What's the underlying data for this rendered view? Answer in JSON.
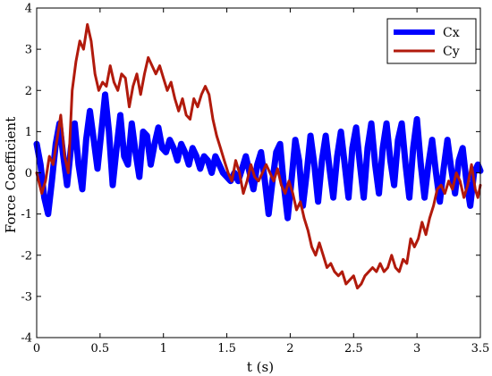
{
  "chart_data": {
    "type": "line",
    "xlabel": "t (s)",
    "ylabel": "Force Coefficient",
    "xlim": [
      0,
      3.5
    ],
    "ylim": [
      -4,
      4
    ],
    "x_ticks": [
      "0",
      "0.5",
      "1",
      "1.5",
      "2",
      "2.5",
      "3",
      "3.5"
    ],
    "y_ticks": [
      "-4",
      "-3",
      "-2",
      "-1",
      "0",
      "1",
      "2",
      "3",
      "4"
    ],
    "grid": false,
    "legend_position": "top-right",
    "series": [
      {
        "name": "Cx",
        "color": "#0000ff",
        "points": [
          [
            0.0,
            0.7
          ],
          [
            0.03,
            0.2
          ],
          [
            0.06,
            -0.6
          ],
          [
            0.09,
            -1.0
          ],
          [
            0.12,
            -0.2
          ],
          [
            0.15,
            0.7
          ],
          [
            0.18,
            1.2
          ],
          [
            0.21,
            0.4
          ],
          [
            0.24,
            -0.3
          ],
          [
            0.27,
            0.6
          ],
          [
            0.3,
            1.2
          ],
          [
            0.33,
            0.2
          ],
          [
            0.36,
            -0.4
          ],
          [
            0.39,
            0.8
          ],
          [
            0.42,
            1.5
          ],
          [
            0.45,
            0.8
          ],
          [
            0.48,
            0.1
          ],
          [
            0.51,
            1.0
          ],
          [
            0.54,
            1.9
          ],
          [
            0.57,
            1.0
          ],
          [
            0.6,
            -0.3
          ],
          [
            0.63,
            0.6
          ],
          [
            0.66,
            1.4
          ],
          [
            0.69,
            0.4
          ],
          [
            0.72,
            0.2
          ],
          [
            0.75,
            1.2
          ],
          [
            0.78,
            0.5
          ],
          [
            0.81,
            -0.1
          ],
          [
            0.84,
            1.0
          ],
          [
            0.87,
            0.9
          ],
          [
            0.9,
            0.2
          ],
          [
            0.93,
            0.7
          ],
          [
            0.96,
            1.1
          ],
          [
            0.99,
            0.6
          ],
          [
            1.02,
            0.5
          ],
          [
            1.05,
            0.8
          ],
          [
            1.08,
            0.6
          ],
          [
            1.11,
            0.3
          ],
          [
            1.14,
            0.7
          ],
          [
            1.17,
            0.5
          ],
          [
            1.2,
            0.2
          ],
          [
            1.23,
            0.6
          ],
          [
            1.26,
            0.4
          ],
          [
            1.29,
            0.1
          ],
          [
            1.32,
            0.4
          ],
          [
            1.35,
            0.3
          ],
          [
            1.38,
            0.0
          ],
          [
            1.41,
            0.4
          ],
          [
            1.44,
            0.2
          ],
          [
            1.47,
            0.0
          ],
          [
            1.5,
            -0.1
          ],
          [
            1.53,
            -0.2
          ],
          [
            1.56,
            0.0
          ],
          [
            1.59,
            -0.2
          ],
          [
            1.62,
            0.1
          ],
          [
            1.65,
            0.4
          ],
          [
            1.68,
            0.0
          ],
          [
            1.71,
            -0.4
          ],
          [
            1.74,
            0.2
          ],
          [
            1.77,
            0.5
          ],
          [
            1.8,
            -0.2
          ],
          [
            1.83,
            -1.0
          ],
          [
            1.86,
            -0.2
          ],
          [
            1.89,
            0.5
          ],
          [
            1.92,
            0.7
          ],
          [
            1.95,
            -0.3
          ],
          [
            1.98,
            -1.1
          ],
          [
            2.01,
            -0.2
          ],
          [
            2.04,
            0.8
          ],
          [
            2.07,
            0.3
          ],
          [
            2.1,
            -0.8
          ],
          [
            2.13,
            0.0
          ],
          [
            2.16,
            0.9
          ],
          [
            2.19,
            0.2
          ],
          [
            2.22,
            -0.7
          ],
          [
            2.25,
            0.3
          ],
          [
            2.28,
            0.9
          ],
          [
            2.31,
            0.1
          ],
          [
            2.34,
            -0.6
          ],
          [
            2.37,
            0.4
          ],
          [
            2.4,
            1.0
          ],
          [
            2.43,
            0.2
          ],
          [
            2.46,
            -0.6
          ],
          [
            2.49,
            0.6
          ],
          [
            2.52,
            1.1
          ],
          [
            2.55,
            0.2
          ],
          [
            2.58,
            -0.6
          ],
          [
            2.61,
            0.6
          ],
          [
            2.64,
            1.2
          ],
          [
            2.67,
            0.2
          ],
          [
            2.7,
            -0.5
          ],
          [
            2.73,
            0.6
          ],
          [
            2.76,
            1.2
          ],
          [
            2.79,
            0.3
          ],
          [
            2.82,
            -0.3
          ],
          [
            2.85,
            0.8
          ],
          [
            2.88,
            1.2
          ],
          [
            2.91,
            0.2
          ],
          [
            2.94,
            -0.6
          ],
          [
            2.97,
            0.6
          ],
          [
            3.0,
            1.3
          ],
          [
            3.03,
            0.2
          ],
          [
            3.06,
            -0.6
          ],
          [
            3.09,
            0.2
          ],
          [
            3.12,
            0.8
          ],
          [
            3.15,
            0.0
          ],
          [
            3.18,
            -0.7
          ],
          [
            3.21,
            0.1
          ],
          [
            3.24,
            0.8
          ],
          [
            3.27,
            0.1
          ],
          [
            3.3,
            -0.5
          ],
          [
            3.33,
            0.3
          ],
          [
            3.36,
            0.6
          ],
          [
            3.39,
            -0.2
          ],
          [
            3.42,
            -0.8
          ],
          [
            3.45,
            0.0
          ],
          [
            3.48,
            0.2
          ],
          [
            3.5,
            0.05
          ]
        ]
      },
      {
        "name": "Cy",
        "color": "#b11a0c",
        "points": [
          [
            0.0,
            0.0
          ],
          [
            0.04,
            -0.5
          ],
          [
            0.07,
            -0.2
          ],
          [
            0.1,
            0.4
          ],
          [
            0.13,
            0.2
          ],
          [
            0.16,
            0.8
          ],
          [
            0.19,
            1.4
          ],
          [
            0.22,
            0.4
          ],
          [
            0.25,
            0.0
          ],
          [
            0.28,
            2.0
          ],
          [
            0.31,
            2.7
          ],
          [
            0.34,
            3.2
          ],
          [
            0.37,
            3.0
          ],
          [
            0.4,
            3.6
          ],
          [
            0.43,
            3.2
          ],
          [
            0.46,
            2.4
          ],
          [
            0.49,
            2.0
          ],
          [
            0.52,
            2.2
          ],
          [
            0.55,
            2.1
          ],
          [
            0.58,
            2.6
          ],
          [
            0.61,
            2.2
          ],
          [
            0.64,
            2.0
          ],
          [
            0.67,
            2.4
          ],
          [
            0.7,
            2.3
          ],
          [
            0.73,
            1.6
          ],
          [
            0.76,
            2.1
          ],
          [
            0.79,
            2.4
          ],
          [
            0.82,
            1.9
          ],
          [
            0.85,
            2.4
          ],
          [
            0.88,
            2.8
          ],
          [
            0.91,
            2.6
          ],
          [
            0.94,
            2.4
          ],
          [
            0.97,
            2.6
          ],
          [
            1.0,
            2.3
          ],
          [
            1.03,
            2.0
          ],
          [
            1.06,
            2.2
          ],
          [
            1.09,
            1.8
          ],
          [
            1.12,
            1.5
          ],
          [
            1.15,
            1.8
          ],
          [
            1.18,
            1.4
          ],
          [
            1.21,
            1.3
          ],
          [
            1.24,
            1.8
          ],
          [
            1.27,
            1.6
          ],
          [
            1.3,
            1.9
          ],
          [
            1.33,
            2.1
          ],
          [
            1.36,
            1.9
          ],
          [
            1.39,
            1.3
          ],
          [
            1.42,
            0.9
          ],
          [
            1.45,
            0.6
          ],
          [
            1.48,
            0.3
          ],
          [
            1.51,
            0.0
          ],
          [
            1.54,
            -0.2
          ],
          [
            1.57,
            0.3
          ],
          [
            1.6,
            0.0
          ],
          [
            1.63,
            -0.5
          ],
          [
            1.66,
            -0.2
          ],
          [
            1.69,
            0.2
          ],
          [
            1.72,
            -0.1
          ],
          [
            1.75,
            -0.2
          ],
          [
            1.78,
            0.0
          ],
          [
            1.81,
            0.2
          ],
          [
            1.84,
            0.0
          ],
          [
            1.87,
            -0.2
          ],
          [
            1.9,
            0.1
          ],
          [
            1.93,
            -0.3
          ],
          [
            1.96,
            -0.5
          ],
          [
            1.99,
            -0.2
          ],
          [
            2.02,
            -0.5
          ],
          [
            2.05,
            -0.9
          ],
          [
            2.08,
            -0.7
          ],
          [
            2.11,
            -1.1
          ],
          [
            2.14,
            -1.4
          ],
          [
            2.17,
            -1.8
          ],
          [
            2.2,
            -2.0
          ],
          [
            2.23,
            -1.7
          ],
          [
            2.26,
            -2.0
          ],
          [
            2.29,
            -2.3
          ],
          [
            2.32,
            -2.2
          ],
          [
            2.35,
            -2.4
          ],
          [
            2.38,
            -2.5
          ],
          [
            2.41,
            -2.4
          ],
          [
            2.44,
            -2.7
          ],
          [
            2.47,
            -2.6
          ],
          [
            2.5,
            -2.5
          ],
          [
            2.53,
            -2.8
          ],
          [
            2.56,
            -2.7
          ],
          [
            2.59,
            -2.5
          ],
          [
            2.62,
            -2.4
          ],
          [
            2.65,
            -2.3
          ],
          [
            2.68,
            -2.4
          ],
          [
            2.71,
            -2.2
          ],
          [
            2.74,
            -2.4
          ],
          [
            2.77,
            -2.3
          ],
          [
            2.8,
            -2.0
          ],
          [
            2.83,
            -2.3
          ],
          [
            2.86,
            -2.4
          ],
          [
            2.89,
            -2.1
          ],
          [
            2.92,
            -2.2
          ],
          [
            2.95,
            -1.6
          ],
          [
            2.98,
            -1.8
          ],
          [
            3.01,
            -1.6
          ],
          [
            3.04,
            -1.2
          ],
          [
            3.07,
            -1.5
          ],
          [
            3.1,
            -1.1
          ],
          [
            3.13,
            -0.8
          ],
          [
            3.16,
            -0.4
          ],
          [
            3.19,
            -0.3
          ],
          [
            3.22,
            -0.5
          ],
          [
            3.25,
            -0.2
          ],
          [
            3.28,
            -0.4
          ],
          [
            3.31,
            0.0
          ],
          [
            3.34,
            -0.2
          ],
          [
            3.37,
            -0.6
          ],
          [
            3.4,
            -0.3
          ],
          [
            3.43,
            0.2
          ],
          [
            3.46,
            -0.4
          ],
          [
            3.48,
            -0.6
          ],
          [
            3.5,
            -0.3
          ]
        ]
      }
    ]
  }
}
